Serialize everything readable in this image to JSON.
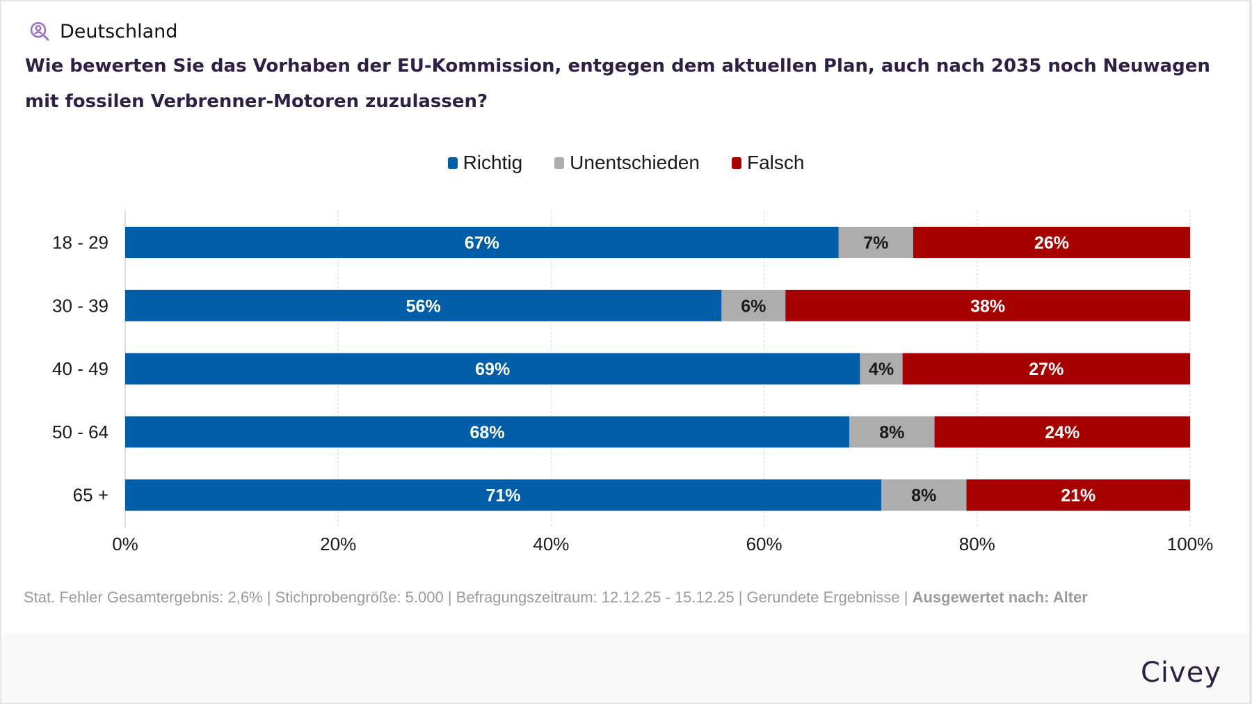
{
  "header": {
    "location_icon": "person-search-icon",
    "location": "Deutschland",
    "question": "Wie bewerten Sie das Vorhaben der EU-Kommission, entgegen dem aktuellen Plan, auch nach 2035 noch Neuwagen mit fossilen Verbrenner-Motoren zuzulassen?"
  },
  "colors": {
    "richtig": "#005ea8",
    "unentschieden": "#adadad",
    "falsch": "#a60000",
    "title": "#2e1f45",
    "icon": "#9b6fc5"
  },
  "chart_data": {
    "type": "bar",
    "orientation": "horizontal",
    "stacked": true,
    "title": "Wie bewerten Sie das Vorhaben der EU-Kommission, entgegen dem aktuellen Plan, auch nach 2035 noch Neuwagen mit fossilen Verbrenner-Motoren zuzulassen?",
    "categories": [
      "18 - 29",
      "30 - 39",
      "40 - 49",
      "50 - 64",
      "65 +"
    ],
    "series": [
      {
        "name": "Richtig",
        "color": "#005ea8",
        "label_color": "#ffffff",
        "values": [
          67,
          56,
          69,
          68,
          71
        ]
      },
      {
        "name": "Unentschieden",
        "color": "#adadad",
        "label_color": "#1a1a1a",
        "values": [
          7,
          6,
          4,
          8,
          8
        ]
      },
      {
        "name": "Falsch",
        "color": "#a60000",
        "label_color": "#ffffff",
        "values": [
          26,
          38,
          27,
          24,
          21
        ]
      }
    ],
    "xlim": [
      0,
      100
    ],
    "xticks": [
      0,
      20,
      40,
      60,
      80,
      100
    ],
    "xtick_labels": [
      "0%",
      "20%",
      "40%",
      "60%",
      "80%",
      "100%"
    ],
    "value_suffix": "%",
    "xlabel": "",
    "ylabel": "",
    "grid": "vertical dotted",
    "legend_position": "top-center"
  },
  "footnote": {
    "text": "Stat. Fehler Gesamtergebnis: 2,6% | Stichprobengröße: 5.000 | Befragungszeitraum: 12.12.25 - 15.12.25 | Gerundete Ergebnisse | ",
    "bold": "Ausgewertet nach: Alter"
  },
  "brand": "Civey"
}
